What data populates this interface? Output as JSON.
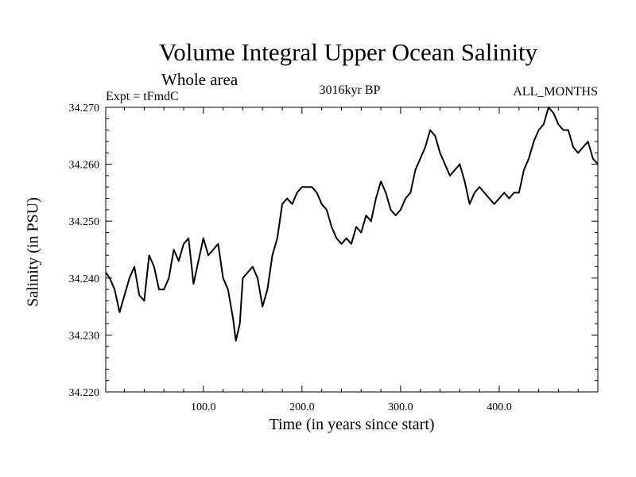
{
  "chart_data": {
    "type": "line",
    "title": "Volume Integral Upper Ocean Salinity",
    "subtitle": "Whole area",
    "experiment": "Expt = tFmdC",
    "period": "3016kyr BP",
    "months": "ALL_MONTHS",
    "xlabel": "Time (in years since start)",
    "ylabel": "Salinity (in PSU)",
    "xlim": [
      1,
      500
    ],
    "ylim": [
      34.22,
      34.27
    ],
    "x_ticks": [
      100,
      200,
      300,
      400
    ],
    "x_tick_labels": [
      "100.0",
      "200.0",
      "300.0",
      "400.0"
    ],
    "y_ticks": [
      34.22,
      34.23,
      34.24,
      34.25,
      34.26,
      34.27
    ],
    "y_tick_labels": [
      "34.220",
      "34.230",
      "34.240",
      "34.250",
      "34.260",
      "34.270"
    ],
    "series": [
      {
        "name": "Salinity",
        "color": "#000000",
        "x": [
          1,
          5,
          10,
          15,
          20,
          25,
          30,
          35,
          40,
          45,
          50,
          55,
          60,
          65,
          70,
          75,
          80,
          85,
          90,
          95,
          100,
          105,
          110,
          115,
          120,
          125,
          130,
          133,
          137,
          140,
          145,
          150,
          155,
          160,
          165,
          170,
          175,
          180,
          185,
          190,
          195,
          200,
          205,
          210,
          215,
          220,
          225,
          230,
          235,
          240,
          245,
          250,
          255,
          260,
          265,
          270,
          275,
          280,
          285,
          290,
          295,
          300,
          305,
          310,
          315,
          320,
          325,
          330,
          335,
          340,
          345,
          350,
          355,
          360,
          365,
          370,
          375,
          380,
          385,
          390,
          395,
          400,
          405,
          410,
          415,
          420,
          425,
          430,
          435,
          440,
          445,
          450,
          455,
          460,
          465,
          470,
          475,
          480,
          485,
          490,
          495,
          500
        ],
        "values": [
          34.241,
          34.24,
          34.238,
          34.234,
          34.237,
          34.24,
          34.242,
          34.237,
          34.236,
          34.244,
          34.242,
          34.238,
          34.238,
          34.24,
          34.245,
          34.243,
          34.246,
          34.247,
          34.239,
          34.243,
          34.247,
          34.244,
          34.245,
          34.246,
          34.24,
          34.238,
          34.233,
          34.229,
          34.232,
          34.24,
          34.241,
          34.242,
          34.24,
          34.235,
          34.238,
          34.244,
          34.247,
          34.253,
          34.254,
          34.253,
          34.255,
          34.256,
          34.256,
          34.256,
          34.255,
          34.253,
          34.252,
          34.249,
          34.247,
          34.246,
          34.247,
          34.246,
          34.249,
          34.248,
          34.251,
          34.25,
          34.254,
          34.257,
          34.255,
          34.252,
          34.251,
          34.252,
          34.254,
          34.255,
          34.259,
          34.261,
          34.263,
          34.266,
          34.265,
          34.262,
          34.26,
          34.258,
          34.259,
          34.26,
          34.257,
          34.253,
          34.255,
          34.256,
          34.255,
          34.254,
          34.253,
          34.254,
          34.255,
          34.254,
          34.255,
          34.255,
          34.259,
          34.261,
          34.264,
          34.266,
          34.267,
          34.27,
          34.269,
          34.267,
          34.266,
          34.266,
          34.263,
          34.262,
          34.263,
          34.264,
          34.261,
          34.26
        ]
      }
    ]
  }
}
